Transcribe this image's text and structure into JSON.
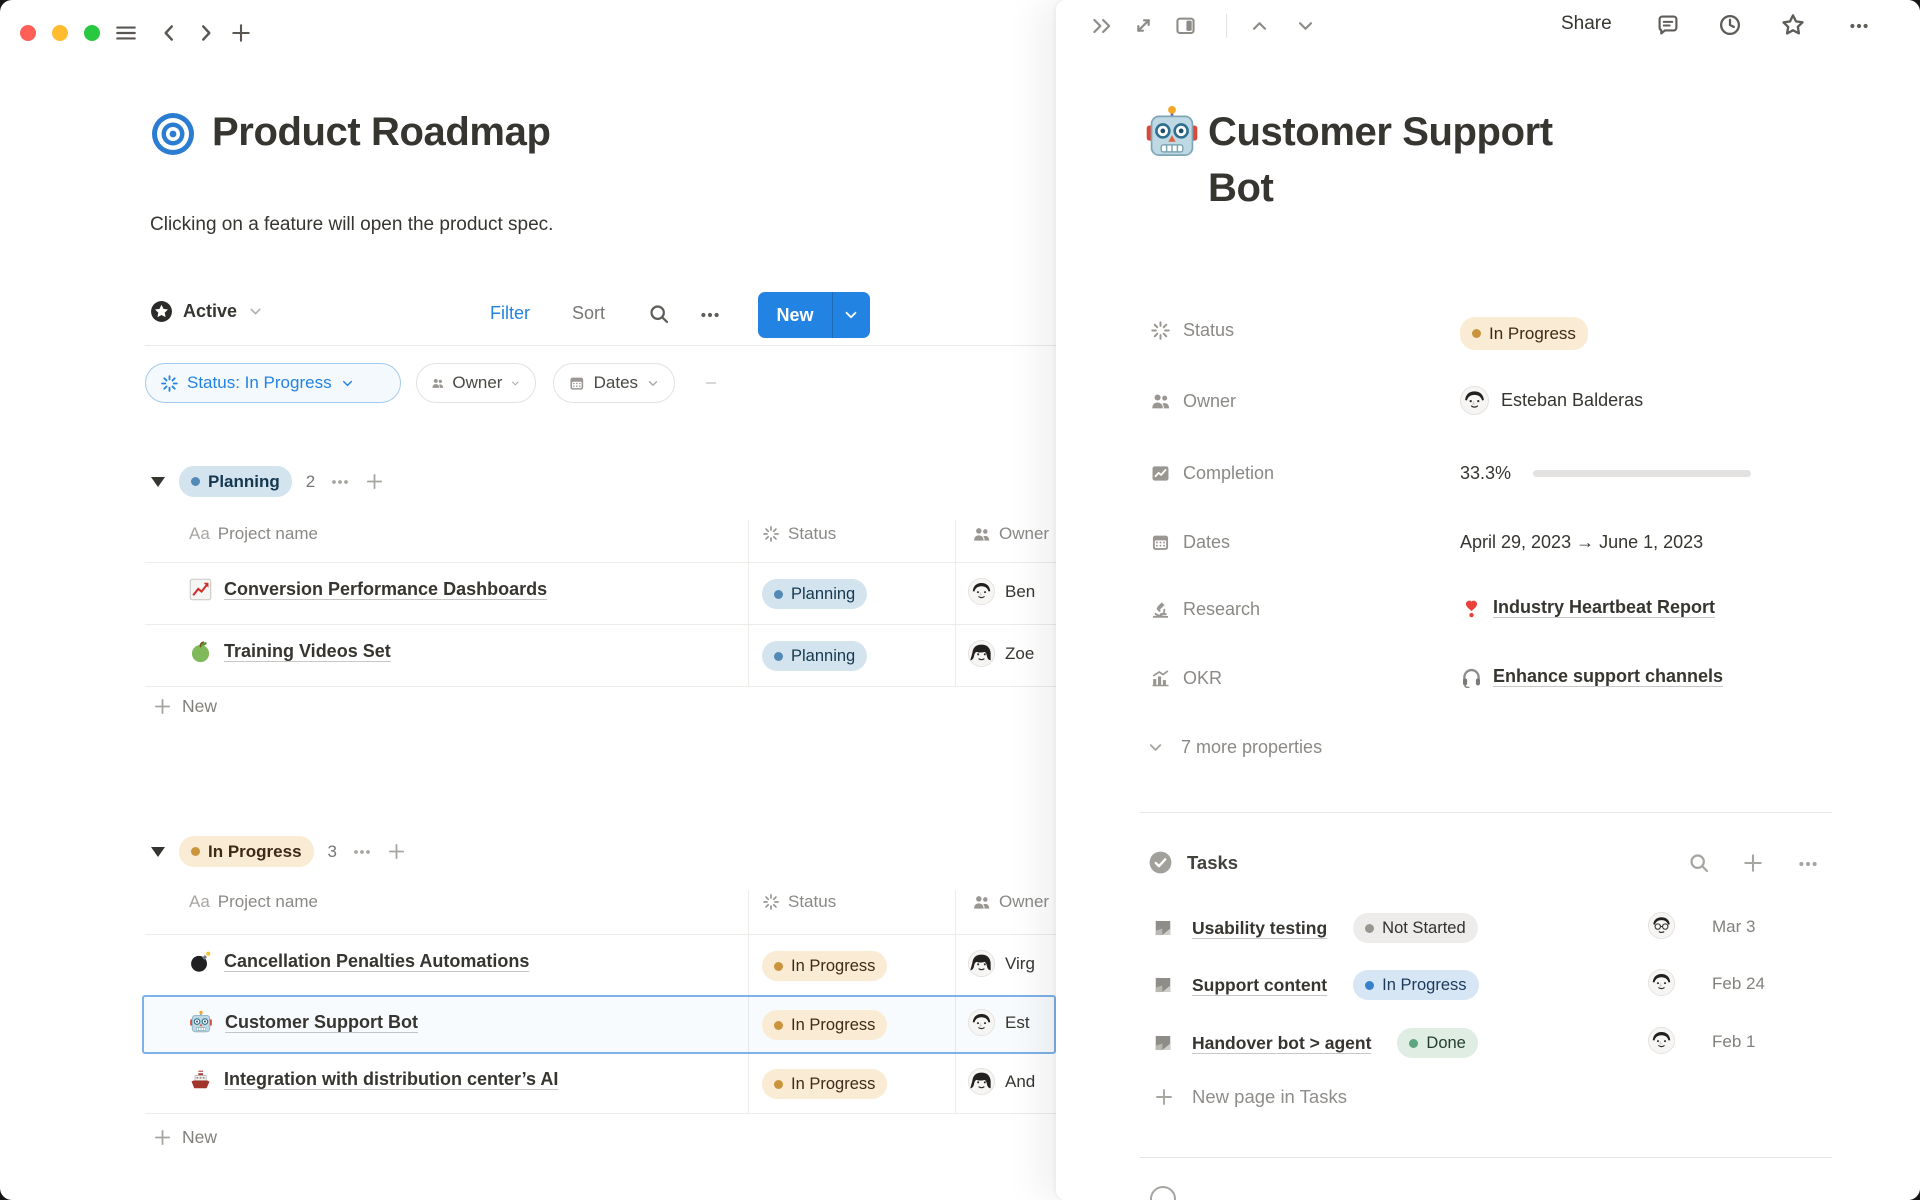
{
  "colors": {
    "accent_blue": "#2383E2",
    "progress_green": "#578A70",
    "pill_planning_bg": "#D3E4EF",
    "pill_inprogress_bg": "#FAEBD4",
    "pill_notstarted_bg": "#EDECEA",
    "pill_done_bg": "#DFEDE3",
    "traffic_lights": [
      "#FF5F57",
      "#FEBC2E",
      "#28C840"
    ]
  },
  "left": {
    "title": "Product Roadmap",
    "description": "Clicking on a feature will open the product spec.",
    "toolbar": {
      "view": "Active",
      "filter": "Filter",
      "sort": "Sort",
      "new_label": "New"
    },
    "filters": [
      {
        "label": "Status: In Progress"
      },
      {
        "label": "Owner"
      },
      {
        "label": "Dates"
      }
    ],
    "columns": {
      "name": "Project name",
      "status": "Status",
      "owner": "Owner",
      "name_icon": "Aa"
    },
    "groups": [
      {
        "label": "Planning",
        "count": "2",
        "new_label": "New",
        "rows": [
          {
            "name": "Conversion Performance Dashboards",
            "status": "Planning",
            "owner": "Ben"
          },
          {
            "name": "Training Videos Set",
            "status": "Planning",
            "owner": "Zoe"
          }
        ]
      },
      {
        "label": "In Progress",
        "count": "3",
        "new_label": "New",
        "rows": [
          {
            "name": "Cancellation Penalties Automations",
            "status": "In Progress",
            "owner": "Virg"
          },
          {
            "name": "Customer Support Bot",
            "status": "In Progress",
            "owner": "Est"
          },
          {
            "name": "Integration with distribution center’s AI",
            "status": "In Progress",
            "owner": "And"
          }
        ]
      }
    ]
  },
  "panel": {
    "topbar": {
      "share": "Share"
    },
    "title_line1": "Customer Support",
    "title_line2": "Bot",
    "properties": [
      {
        "label": "Status",
        "value": "In Progress"
      },
      {
        "label": "Owner",
        "value": "Esteban Balderas"
      },
      {
        "label": "Completion",
        "value": "33.3%",
        "percent": 33.3
      },
      {
        "label": "Dates",
        "value": "April 29, 2023 → June 1, 2023"
      },
      {
        "label": "Research",
        "value": "Industry Heartbeat Report"
      },
      {
        "label": "OKR",
        "value": "Enhance support channels"
      }
    ],
    "more_properties": "7 more properties",
    "tasks": {
      "title": "Tasks",
      "items": [
        {
          "name": "Usability testing",
          "status": "Not Started",
          "date": "Mar 3"
        },
        {
          "name": "Support content",
          "status": "In Progress",
          "date": "Feb 24"
        },
        {
          "name": "Handover bot > agent",
          "status": "Done",
          "date": "Feb 1"
        }
      ],
      "new_label": "New page in Tasks"
    }
  }
}
